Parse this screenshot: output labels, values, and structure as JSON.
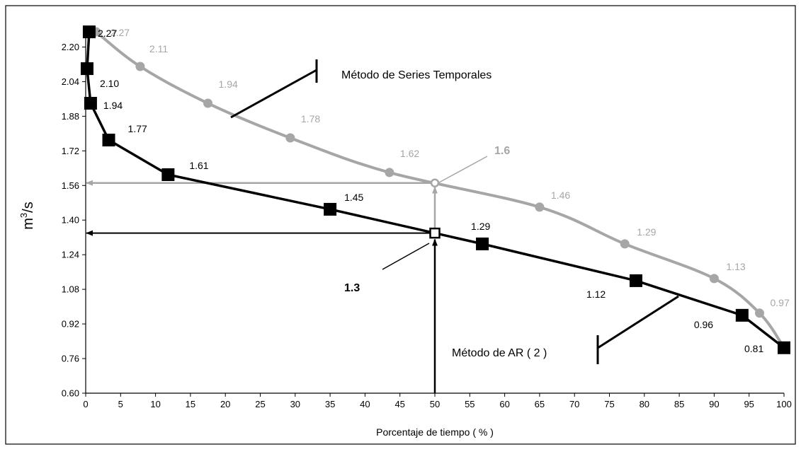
{
  "chart_data": {
    "type": "line",
    "xlabel": "Porcentaje de tiempo ( % )",
    "ylabel": "m³/s",
    "ylabel_base": "m",
    "ylabel_sup": "3",
    "ylabel_rest": "/s",
    "xlim": [
      0,
      100
    ],
    "ylim": [
      0.6,
      2.28
    ],
    "x_ticks": [
      0,
      5,
      10,
      15,
      20,
      25,
      30,
      35,
      40,
      45,
      50,
      55,
      60,
      65,
      70,
      75,
      80,
      85,
      90,
      95,
      100
    ],
    "y_ticks": [
      "0.60",
      "0.76",
      "0.92",
      "1.08",
      "1.24",
      "1.40",
      "1.56",
      "1.72",
      "1.88",
      "2.04",
      "2.20"
    ],
    "grid": false,
    "colors": {
      "series_ts": "#a6a6a6",
      "series_ar": "#000000"
    },
    "series": [
      {
        "name": "Método de Series Temporales",
        "color": "#a6a6a6",
        "x": [
          1.5,
          7.8,
          17.5,
          29.3,
          43.5,
          65.0,
          77.2,
          90.0,
          96.5
        ],
        "y": [
          2.27,
          2.11,
          1.94,
          1.78,
          1.62,
          1.46,
          1.29,
          1.13,
          0.97
        ],
        "labels": [
          "2.27",
          "2.11",
          "1.94",
          "1.78",
          "1.62",
          "1.46",
          "1.29",
          "1.13",
          "0.97"
        ]
      },
      {
        "name": "Método de AR ( 2 )",
        "color": "#000000",
        "x": [
          0.5,
          0.2,
          0.7,
          3.3,
          11.8,
          35.0,
          56.8,
          78.8,
          94.0,
          100
        ],
        "y": [
          2.27,
          2.1,
          1.94,
          1.77,
          1.61,
          1.45,
          1.29,
          1.12,
          0.96,
          0.81
        ],
        "labels": [
          "",
          "2.10",
          "1.94",
          "1.77",
          "1.61",
          "1.45",
          "1.29",
          "1.12",
          "0.96",
          "0.81"
        ]
      }
    ],
    "annotations": {
      "ts_label": "Método de Series Temporales",
      "ar_label": "Método de AR ( 2 )",
      "ar_top_label": "2.27",
      "ts_value_at_50": "1.6",
      "ar_value_at_50": "1.3",
      "reference_x": 50
    }
  }
}
